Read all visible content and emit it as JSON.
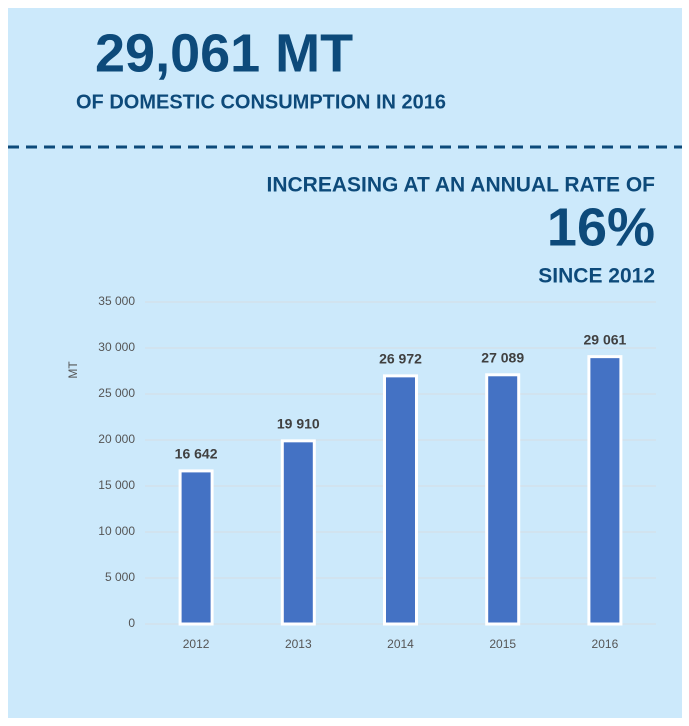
{
  "chart_data": {
    "type": "bar",
    "title": "29,061 MT",
    "subtitle": "OF DOMESTIC CONSUMPTION IN 2016",
    "annotations": [
      "INCREASING AT AN ANNUAL RATE OF",
      "16%",
      "SINCE 2012"
    ],
    "ylabel": "MT",
    "categories": [
      "2012",
      "2013",
      "2014",
      "2015",
      "2016"
    ],
    "values": [
      16642,
      19910,
      26972,
      27089,
      29061
    ],
    "value_labels": [
      "16 642",
      "19 910",
      "26 972",
      "27 089",
      "29 061"
    ],
    "color": "#4472c4",
    "ylim": [
      0,
      35000
    ],
    "yticks": [
      0,
      {
        "value": 5000,
        "label": "5 000"
      },
      {
        "value": 10000,
        "label": "10 000"
      },
      {
        "value": 15000,
        "label": "15 000"
      },
      {
        "value": 20000,
        "label": "20 000"
      },
      {
        "value": 25000,
        "label": "25 000"
      },
      {
        "value": 30000,
        "label": "30 000"
      },
      {
        "value": 35000,
        "label": "35 000"
      }
    ],
    "grid": true
  }
}
